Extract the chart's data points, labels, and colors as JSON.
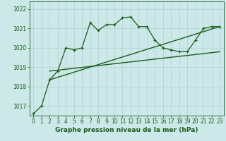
{
  "title": "Graphe pression niveau de la mer (hPa)",
  "bg_color": "#cce8e8",
  "grid_color": "#b8d8d8",
  "line_color": "#1a5c1a",
  "ylim": [
    1016.5,
    1022.4
  ],
  "xlim": [
    -0.5,
    23.5
  ],
  "yticks": [
    1017,
    1018,
    1019,
    1020,
    1021,
    1022
  ],
  "xticks": [
    0,
    1,
    2,
    3,
    4,
    5,
    6,
    7,
    8,
    9,
    10,
    11,
    12,
    13,
    14,
    15,
    16,
    17,
    18,
    19,
    20,
    21,
    22,
    23
  ],
  "series1_x": [
    0,
    1,
    2,
    3,
    4,
    5,
    6,
    7,
    8,
    9,
    10,
    11,
    12,
    13,
    14,
    15,
    16,
    17,
    18,
    19,
    20,
    21,
    22,
    23
  ],
  "series1_y": [
    1016.6,
    1017.0,
    1018.35,
    1018.8,
    1020.0,
    1019.9,
    1020.0,
    1021.3,
    1020.9,
    1021.2,
    1021.2,
    1021.55,
    1021.6,
    1021.1,
    1021.1,
    1020.4,
    1020.0,
    1019.9,
    1019.8,
    1019.8,
    1020.4,
    1021.0,
    1021.1,
    1021.1
  ],
  "series2_x": [
    2,
    23
  ],
  "series2_y": [
    1018.35,
    1021.1
  ],
  "series3_x": [
    2,
    23
  ],
  "series3_y": [
    1018.8,
    1019.8
  ],
  "fontsize_ticks": 5.5,
  "fontsize_label": 6.5
}
